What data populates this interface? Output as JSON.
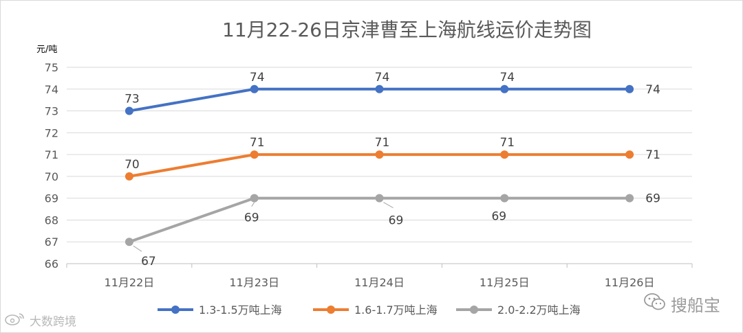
{
  "chart_data": {
    "type": "line",
    "title": "11月22-26日京津曹至上海航线运价走势图",
    "ylabel": "元/吨",
    "xlabel": "",
    "categories": [
      "11月22日",
      "11月23日",
      "11月24日",
      "11月25日",
      "11月26日"
    ],
    "ylim": [
      66,
      75
    ],
    "yticks": [
      66,
      67,
      68,
      69,
      70,
      71,
      72,
      73,
      74,
      75
    ],
    "grid": true,
    "legend_position": "bottom",
    "series": [
      {
        "name": "1.3-1.5万吨上海",
        "values": [
          73,
          74,
          74,
          74,
          74
        ],
        "color": "#4472C4"
      },
      {
        "name": "1.6-1.7万吨上海",
        "values": [
          70,
          71,
          71,
          71,
          71
        ],
        "color": "#ED7D31"
      },
      {
        "name": "2.0-2.2万吨上海",
        "values": [
          67,
          69,
          69,
          69,
          69
        ],
        "color": "#A5A5A5"
      }
    ]
  },
  "watermarks": {
    "left": "大数跨境",
    "right": "搜船宝",
    "left_icon": "weibo-icon",
    "right_icon": "wechat-icon"
  }
}
